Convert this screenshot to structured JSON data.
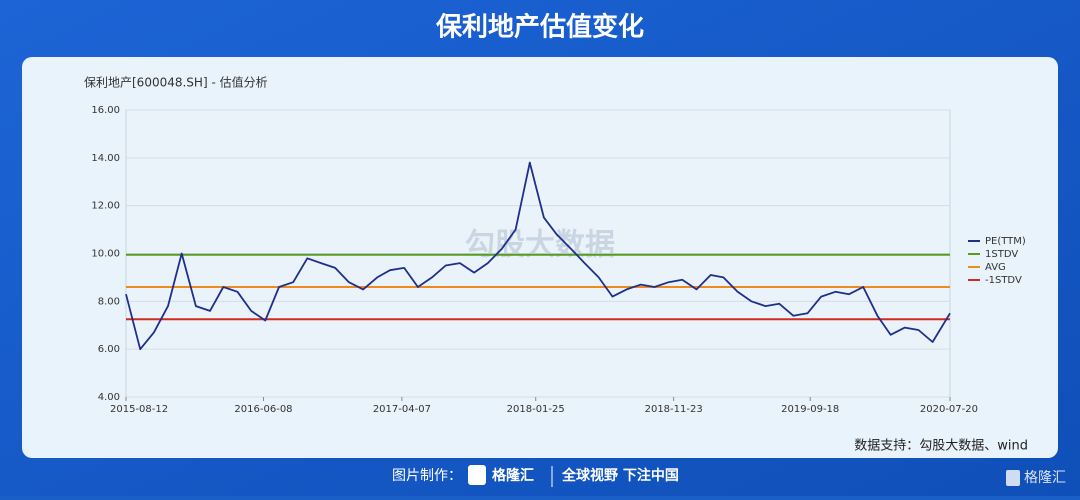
{
  "header": {
    "title": "保利地产估值变化"
  },
  "chart_data": {
    "type": "line",
    "title": "保利地产[600048.SH] - 估值分析",
    "watermark": "勾股大数据",
    "source": "数据支持：勾股大数据、wind",
    "x": [
      "2015-08-12",
      "2015-09-12",
      "2015-10-12",
      "2015-11-12",
      "2015-12-12",
      "2016-01-12",
      "2016-02-12",
      "2016-03-12",
      "2016-04-12",
      "2016-05-12",
      "2016-06-12",
      "2016-07-12",
      "2016-08-12",
      "2016-09-12",
      "2016-10-12",
      "2016-11-12",
      "2016-12-12",
      "2017-01-12",
      "2017-02-12",
      "2017-03-12",
      "2017-04-12",
      "2017-05-12",
      "2017-06-12",
      "2017-07-12",
      "2017-08-12",
      "2017-09-12",
      "2017-10-12",
      "2017-11-12",
      "2017-12-12",
      "2018-01-12",
      "2018-02-12",
      "2018-03-12",
      "2018-04-12",
      "2018-05-12",
      "2018-06-12",
      "2018-07-12",
      "2018-08-12",
      "2018-09-12",
      "2018-10-12",
      "2018-11-12",
      "2018-12-12",
      "2019-01-12",
      "2019-02-12",
      "2019-03-12",
      "2019-04-12",
      "2019-05-12",
      "2019-06-12",
      "2019-07-12",
      "2019-08-12",
      "2019-09-12",
      "2019-10-12",
      "2019-11-12",
      "2019-12-12",
      "2020-01-12",
      "2020-02-12",
      "2020-03-12",
      "2020-04-12",
      "2020-05-12",
      "2020-06-12",
      "2020-07-20"
    ],
    "series": [
      {
        "name": "PE(TTM)",
        "color": "#1f2f8c",
        "values": [
          8.3,
          6.0,
          6.7,
          7.8,
          10.0,
          7.8,
          7.6,
          8.6,
          8.4,
          7.6,
          7.2,
          8.6,
          8.8,
          9.8,
          9.6,
          9.4,
          8.8,
          8.5,
          9.0,
          9.3,
          9.4,
          8.6,
          9.0,
          9.5,
          9.6,
          9.2,
          9.6,
          10.2,
          11.0,
          13.8,
          11.5,
          10.8,
          10.2,
          9.6,
          9.0,
          8.2,
          8.5,
          8.7,
          8.6,
          8.8,
          8.9,
          8.5,
          9.1,
          9.0,
          8.4,
          8.0,
          7.8,
          7.9,
          7.4,
          7.5,
          8.2,
          8.4,
          8.3,
          8.6,
          7.4,
          6.6,
          6.9,
          6.8,
          6.3,
          7.5
        ]
      }
    ],
    "hlines": [
      {
        "name": "1STDV",
        "color": "#5a9a1e",
        "value": 9.95
      },
      {
        "name": "AVG",
        "color": "#f08a1c",
        "value": 8.6
      },
      {
        "name": "-1STDV",
        "color": "#d22b1f",
        "value": 7.25
      }
    ],
    "xlim": [
      "2015-08-12",
      "2020-07-20"
    ],
    "xticks": [
      "2015-08-12",
      "2016-06-08",
      "2017-04-07",
      "2018-01-25",
      "2018-11-23",
      "2019-09-18",
      "2020-07-20"
    ],
    "ylim": [
      4,
      16
    ],
    "yticks": [
      {
        "value": 4,
        "label": "4.00"
      },
      {
        "value": 6,
        "label": "6.00"
      },
      {
        "value": 8,
        "label": "8.00"
      },
      {
        "value": 10,
        "label": "10.00"
      },
      {
        "value": 12,
        "label": "12.00"
      },
      {
        "value": 14,
        "label": "14.00"
      },
      {
        "value": 16,
        "label": "16.00"
      }
    ],
    "grid": true,
    "legend": "right"
  },
  "footer": {
    "made_by": "图片制作：",
    "brand": "格隆汇",
    "slogan": "全球视野 下注中国",
    "logo": "格隆汇"
  }
}
